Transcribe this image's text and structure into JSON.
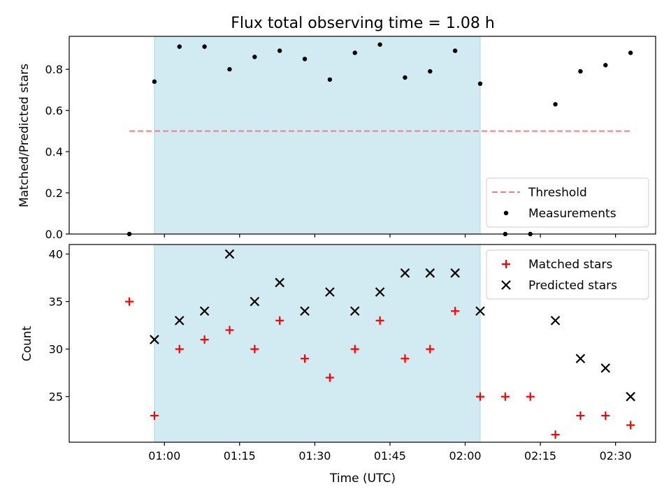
{
  "chart_data": {
    "title": "Flux total observing time = 1.08 h",
    "xlabel": "Time (UTC)",
    "x_unit": "minutes since 00:00 UTC",
    "xlim": [
      41,
      158
    ],
    "x_ticks": [
      {
        "value": 60,
        "label": "01:00"
      },
      {
        "value": 75,
        "label": "01:15"
      },
      {
        "value": 90,
        "label": "01:30"
      },
      {
        "value": 105,
        "label": "01:45"
      },
      {
        "value": 120,
        "label": "02:00"
      },
      {
        "value": 135,
        "label": "02:15"
      },
      {
        "value": 150,
        "label": "02:30"
      }
    ],
    "observing_window": {
      "start": 58,
      "end": 123,
      "color": "#add8e6"
    },
    "x": [
      53,
      58,
      63,
      68,
      73,
      78,
      83,
      88,
      93,
      98,
      103,
      108,
      113,
      118,
      123,
      128,
      133,
      138,
      143,
      148,
      153
    ],
    "panels": [
      {
        "id": "ratio",
        "type": "scatter",
        "ylabel": "Matched/Predicted stars",
        "ylim": [
          0,
          0.96
        ],
        "y_ticks": [
          {
            "value": 0.0,
            "label": "0.0"
          },
          {
            "value": 0.2,
            "label": "0.2"
          },
          {
            "value": 0.4,
            "label": "0.4"
          },
          {
            "value": 0.6,
            "label": "0.6"
          },
          {
            "value": 0.8,
            "label": "0.8"
          }
        ],
        "threshold": {
          "name": "Threshold",
          "value": 0.5,
          "x_range": [
            53,
            153
          ],
          "color": "#f08080"
        },
        "series": [
          {
            "name": "Measurements",
            "marker": "dot",
            "color": "#000000",
            "values": [
              0.0,
              0.74,
              0.91,
              0.91,
              0.8,
              0.86,
              0.89,
              0.85,
              0.75,
              0.88,
              0.92,
              0.76,
              0.79,
              0.89,
              0.73,
              0.0,
              0.0,
              0.63,
              0.79,
              0.82,
              0.88
            ]
          }
        ],
        "legend": {
          "location": "lower right",
          "entries": [
            "Threshold",
            "Measurements"
          ]
        }
      },
      {
        "id": "counts",
        "type": "scatter",
        "ylabel": "Count",
        "ylim": [
          20.2,
          41
        ],
        "y_ticks": [
          {
            "value": 25,
            "label": "25"
          },
          {
            "value": 30,
            "label": "30"
          },
          {
            "value": 35,
            "label": "35"
          },
          {
            "value": 40,
            "label": "40"
          }
        ],
        "series": [
          {
            "name": "Matched stars",
            "marker": "plus",
            "color": "#ff0000",
            "values": [
              35,
              23,
              30,
              31,
              32,
              30,
              33,
              29,
              27,
              30,
              33,
              29,
              30,
              34,
              25,
              25,
              25,
              21,
              23,
              23,
              22
            ]
          },
          {
            "name": "Predicted stars",
            "marker": "cross",
            "color": "#000000",
            "values": [
              null,
              31,
              33,
              34,
              40,
              35,
              37,
              34,
              36,
              34,
              36,
              38,
              38,
              38,
              34,
              null,
              null,
              33,
              29,
              28,
              25
            ]
          }
        ],
        "legend": {
          "location": "upper right",
          "entries": [
            "Matched stars",
            "Predicted stars"
          ]
        }
      }
    ]
  }
}
